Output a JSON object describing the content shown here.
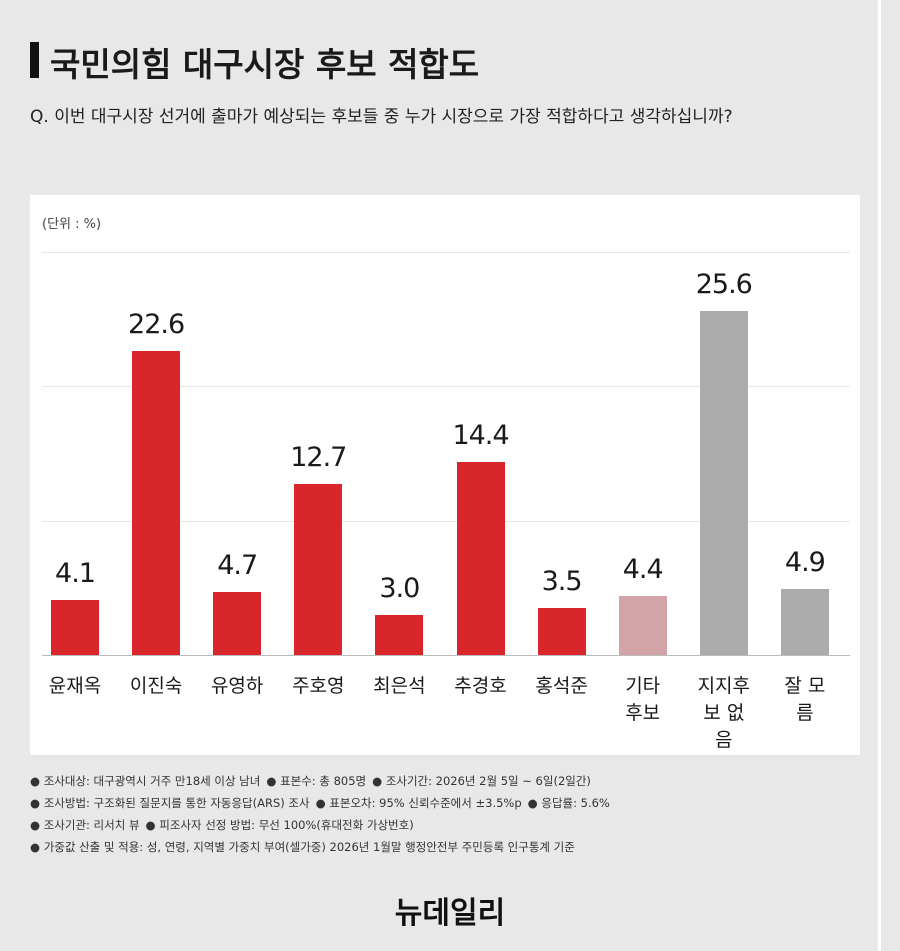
{
  "chart_data": {
    "type": "bar",
    "title": "국민의힘 대구시장 후보 적합도",
    "subtitle": "Q. 이번 대구시장 선거에 출마가 예상되는 후보들 중 누가 시장으로 가장 적합하다고 생각하십니까?",
    "unit_label": "(단위 : %)",
    "categories": [
      "윤재옥",
      "이진숙",
      "유영하",
      "주호영",
      "최은석",
      "추경호",
      "홍석준",
      "기타 후보",
      "지지후보 없음",
      "잘 모름"
    ],
    "values": [
      4.1,
      22.6,
      4.7,
      12.7,
      3.0,
      14.4,
      3.5,
      4.4,
      25.6,
      4.9
    ],
    "value_labels": [
      "4.1",
      "22.6",
      "4.7",
      "12.7",
      "3.0",
      "14.4",
      "3.5",
      "4.4",
      "25.6",
      "4.9"
    ],
    "colors": [
      "#d8262a",
      "#d8262a",
      "#d8262a",
      "#d8262a",
      "#d8262a",
      "#d8262a",
      "#d8262a",
      "#d3a4a7",
      "#ababab",
      "#ababab"
    ],
    "ylim": [
      0,
      30
    ],
    "yticks": [
      0,
      10,
      20,
      30
    ],
    "grid": true
  },
  "notes": [
    [
      "조사대상: 대구광역시 거주 만18세 이상 남녀",
      "표본수: 총 805명",
      "조사기간: 2026년 2월 5일 ~ 6일(2일간)"
    ],
    [
      "조사방법: 구조화된 질문지를 통한 자동응답(ARS) 조사",
      "표본오차: 95% 신뢰수준에서 ±3.5%p",
      "응답률: 5.6%"
    ],
    [
      "조사기관: 리서치 뷰",
      "피조사자 선정 방법: 무선 100%(휴대전화 가상번호)"
    ],
    [
      "가중값 산출 및 적용: 성, 연령, 지역별 가중치 부여(셀가중) 2026년 1월말 행정안전부 주민등록 인구통계 기준"
    ]
  ],
  "logo": "뉴데일리"
}
